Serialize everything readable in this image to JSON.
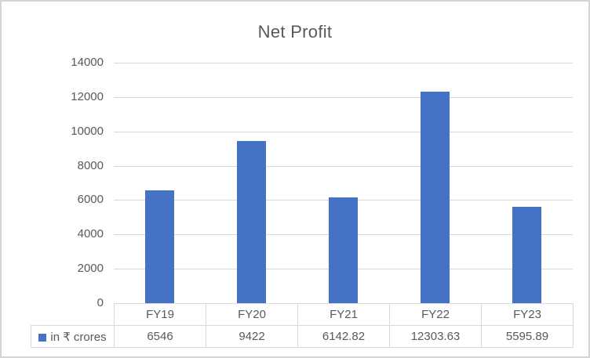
{
  "chart_data": {
    "type": "bar",
    "title": "Net Profit",
    "categories": [
      "FY19",
      "FY20",
      "FY21",
      "FY22",
      "FY23"
    ],
    "series": [
      {
        "name": "in ₹ crores",
        "values": [
          6546,
          9422,
          6142.82,
          12303.63,
          5595.89
        ]
      }
    ],
    "value_labels": [
      "6546",
      "9422",
      "6142.82",
      "12303.63",
      "5595.89"
    ],
    "xlabel": "",
    "ylabel": "",
    "ylim": [
      0,
      14000
    ],
    "ytick_step": 2000,
    "ytick_labels": [
      "0",
      "2000",
      "4000",
      "6000",
      "8000",
      "10000",
      "12000",
      "14000"
    ],
    "grid": true,
    "legend_position": "data-table-left",
    "data_table_shown": true,
    "colors": {
      "bar": "#4472C4",
      "gridline": "#D9D9D9",
      "axis_text": "#595959",
      "title_text": "#595959",
      "table_border": "#D9D9D9",
      "table_text": "#595959",
      "chart_border": "#D5D5D5",
      "background": "#FFFFFF"
    }
  }
}
